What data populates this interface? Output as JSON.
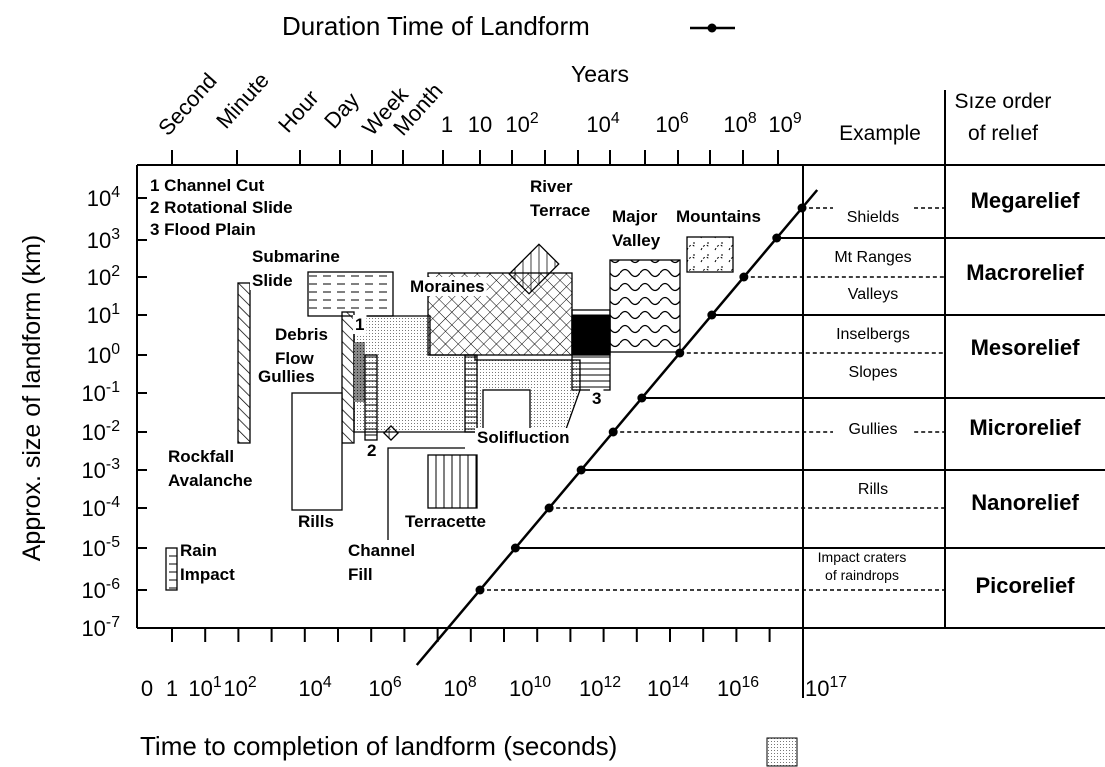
{
  "title": "Duration Time of Landform",
  "top_axis": {
    "units": [
      "Second",
      "Minute",
      "Hour",
      "Day",
      "Week",
      "Month"
    ],
    "years_label": "Years",
    "years_ticks": [
      {
        "base": "1"
      },
      {
        "base": "10"
      },
      {
        "base": "10",
        "exp": "2"
      },
      {
        "base": "10",
        "exp": "4"
      },
      {
        "base": "10",
        "exp": "6"
      },
      {
        "base": "10",
        "exp": "8"
      },
      {
        "base": "10",
        "exp": "9"
      }
    ]
  },
  "y_axis": {
    "label": "Approx. size of landform (km)",
    "ticks": [
      {
        "base": "10",
        "exp": "4"
      },
      {
        "base": "10",
        "exp": "3"
      },
      {
        "base": "10",
        "exp": "2"
      },
      {
        "base": "10",
        "exp": "1"
      },
      {
        "base": "10",
        "exp": "0"
      },
      {
        "base": "10",
        "exp": "-1"
      },
      {
        "base": "10",
        "exp": "-2"
      },
      {
        "base": "10",
        "exp": "-3"
      },
      {
        "base": "10",
        "exp": "-4"
      },
      {
        "base": "10",
        "exp": "-5"
      },
      {
        "base": "10",
        "exp": "-6"
      },
      {
        "base": "10",
        "exp": "-7"
      }
    ]
  },
  "x_axis": {
    "label": "Time to completion of landform (seconds)",
    "ticks": [
      {
        "base": "0"
      },
      {
        "base": "1"
      },
      {
        "base": "10",
        "exp": "1"
      },
      {
        "base": "10",
        "exp": "2"
      },
      {
        "base": "10",
        "exp": "4"
      },
      {
        "base": "10",
        "exp": "6"
      },
      {
        "base": "10",
        "exp": "8"
      },
      {
        "base": "10",
        "exp": "10"
      },
      {
        "base": "10",
        "exp": "12"
      },
      {
        "base": "10",
        "exp": "14"
      },
      {
        "base": "10",
        "exp": "16"
      },
      {
        "base": "10",
        "exp": "17"
      }
    ]
  },
  "columns": {
    "example": "Example",
    "relief": [
      "Sıze order",
      "of relıef"
    ]
  },
  "examples": [
    [
      "Shields"
    ],
    [
      "Mt  Ranges"
    ],
    [
      "Valleys"
    ],
    [
      "Inselbergs"
    ],
    [
      "Slopes"
    ],
    [
      "Gullies"
    ],
    [
      "Rills"
    ],
    [
      "Impact craters",
      "of raindrops"
    ]
  ],
  "relief": [
    "Megarelief",
    "Macrorelief",
    "Mesorelief",
    "Microrelief",
    "Nanorelief",
    "Picorelief"
  ],
  "key": [
    "1 Channel Cut",
    "2 Rotational Slide",
    "3 Flood Plain"
  ],
  "landforms": [
    [
      "Submarine",
      "Slide"
    ],
    [
      "Debris",
      "Flow"
    ],
    [
      "Gullies"
    ],
    [
      "Rockfall",
      "Avalanche"
    ],
    [
      "Rills"
    ],
    [
      "Rain",
      "Impact"
    ],
    [
      "Moraines"
    ],
    [
      "Channel",
      "Fill"
    ],
    [
      "Terracette"
    ],
    [
      "Solifluction"
    ],
    [
      "River",
      "Terrace"
    ],
    [
      "Major",
      "Valley"
    ],
    [
      "Mountains"
    ],
    [
      "1"
    ],
    [
      "2"
    ],
    [
      "3"
    ]
  ]
}
